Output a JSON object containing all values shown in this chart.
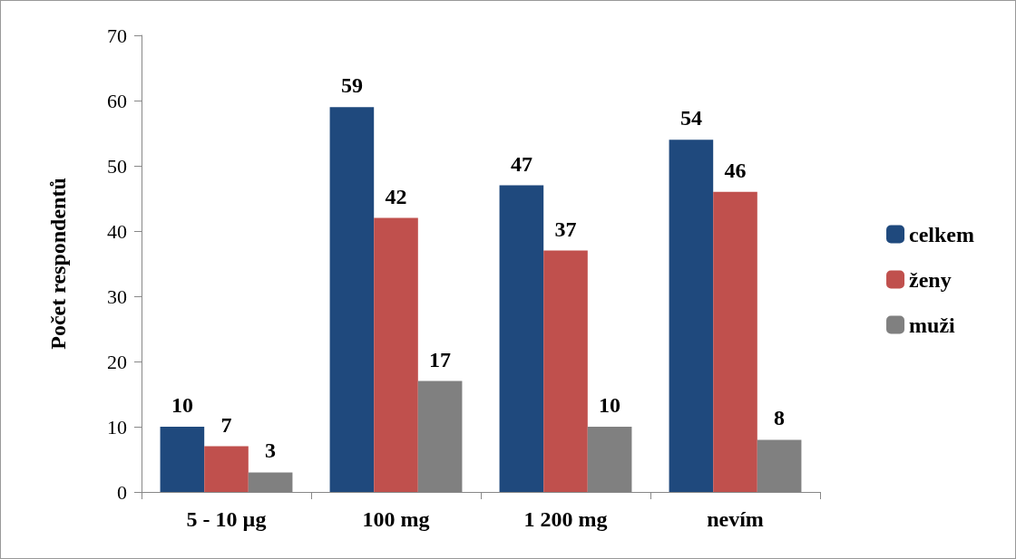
{
  "chart_data": {
    "type": "bar",
    "ylabel": "Počet respondentů",
    "categories": [
      "5 - 10 µg",
      "100 mg",
      "1 200 mg",
      "nevím"
    ],
    "series": [
      {
        "name": "celkem",
        "color": "#1f497d",
        "values": [
          10,
          59,
          47,
          54
        ]
      },
      {
        "name": "ženy",
        "color": "#c0504d",
        "values": [
          7,
          42,
          37,
          46
        ]
      },
      {
        "name": "muži",
        "color": "#808080",
        "values": [
          3,
          17,
          10,
          8
        ]
      }
    ],
    "ylim": [
      0,
      70
    ],
    "yticks": [
      0,
      10,
      20,
      30,
      40,
      50,
      60,
      70
    ],
    "grid": false,
    "legend": "right",
    "data_labels": true
  }
}
